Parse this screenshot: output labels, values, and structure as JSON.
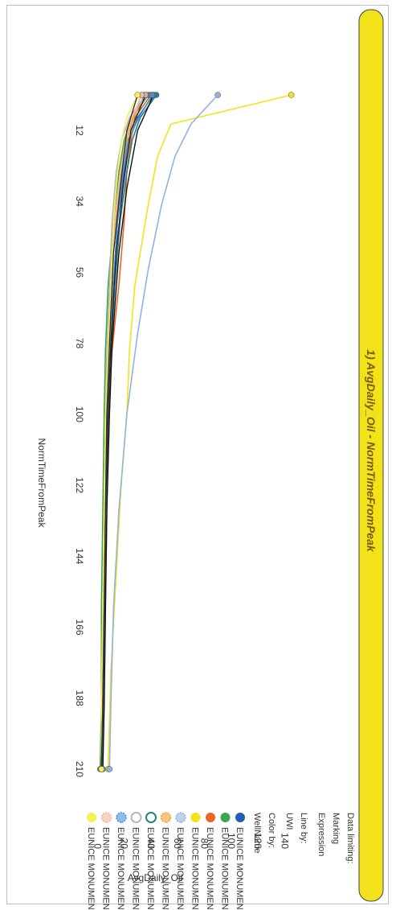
{
  "chart_data": {
    "type": "line",
    "title": "1) AvgDaily_Oil - NormTimeFromPeak",
    "xlabel": "NormTimeFromPeak",
    "ylabel": "AvgDaily_Oil",
    "x_ticks": [
      12,
      34,
      56,
      78,
      100,
      122,
      144,
      166,
      188,
      210
    ],
    "y_ticks": [
      0,
      20,
      40,
      60,
      80,
      100,
      120,
      140
    ],
    "xlim": [
      1,
      223
    ],
    "ylim": [
      -2,
      150
    ],
    "grid": false,
    "legend_position": "right",
    "series": [
      {
        "name": "EUNICE MONUMENT..",
        "color": "#1f5fb4",
        "marker": "circle",
        "x": [
          1,
          8,
          15,
          25,
          40,
          60,
          80,
          100,
          130,
          160,
          190,
          210
        ],
        "y": [
          42,
          30,
          24,
          20,
          15,
          12,
          9,
          7,
          6,
          5,
          4,
          3
        ]
      },
      {
        "name": "EUNICE MONUMENT..",
        "color": "#3aa655",
        "marker": "circle",
        "x": [
          1,
          8,
          15,
          25,
          40,
          60,
          80,
          100,
          130,
          160,
          190,
          210
        ],
        "y": [
          38,
          26,
          20,
          16,
          12,
          8,
          6,
          5,
          4,
          3,
          3,
          2
        ]
      },
      {
        "name": "EUNICE MONUMENT..",
        "color": "#e8652b",
        "marker": "circle",
        "x": [
          1,
          8,
          15,
          25,
          40,
          60,
          80,
          100,
          130,
          160,
          190,
          210
        ],
        "y": [
          40,
          28,
          25,
          22,
          20,
          16,
          11,
          8,
          6,
          5,
          4,
          3
        ]
      },
      {
        "name": "EUNICE MONUMENT..",
        "color": "#f5e21b",
        "marker": "circle",
        "x": [
          1,
          10,
          20,
          35,
          45,
          60,
          80,
          100,
          120,
          150,
          180,
          210
        ],
        "y": [
          145,
          55,
          45,
          38,
          34,
          28,
          24,
          22,
          18,
          14,
          10,
          8
        ]
      },
      {
        "name": "EUNICE MONUMENT..",
        "color": "#8fb3de",
        "marker": "sun",
        "x": [
          1,
          10,
          20,
          35,
          55,
          75,
          100,
          130,
          160,
          190,
          210
        ],
        "y": [
          90,
          70,
          58,
          48,
          38,
          30,
          22,
          16,
          12,
          10,
          9
        ]
      },
      {
        "name": "EUNICE MONUMENT..",
        "color": "#f0a030",
        "marker": "sun",
        "x": [
          1,
          8,
          15,
          25,
          40,
          60,
          80,
          100,
          130,
          160,
          190,
          210
        ],
        "y": [
          35,
          27,
          22,
          18,
          14,
          10,
          8,
          6,
          5,
          4,
          3,
          3
        ]
      },
      {
        "name": "EUNICE MONUMENT..",
        "color": "#2a7f7f",
        "marker": "ring",
        "x": [
          1,
          8,
          15,
          25,
          40,
          60,
          80,
          100,
          130,
          160,
          190,
          210
        ],
        "y": [
          44,
          32,
          26,
          22,
          17,
          13,
          10,
          8,
          6,
          5,
          4,
          3
        ]
      },
      {
        "name": "EUNICE MONUMENT..",
        "color": "#b5b5b5",
        "marker": "ring",
        "x": [
          1,
          8,
          15,
          25,
          40,
          60,
          80,
          100,
          130,
          160,
          190,
          210
        ],
        "y": [
          36,
          24,
          18,
          14,
          11,
          9,
          7,
          6,
          5,
          4,
          4,
          3
        ]
      },
      {
        "name": "EUNICE MONUMENT..",
        "color": "#4a90d9",
        "marker": "sun",
        "x": [
          1,
          8,
          15,
          25,
          40,
          60,
          80,
          100,
          130,
          160,
          190,
          210
        ],
        "y": [
          41,
          31,
          23,
          19,
          15,
          12,
          10,
          8,
          7,
          6,
          5,
          4
        ]
      },
      {
        "name": "EUNICE MONUMENT..",
        "color": "#f2b8a0",
        "marker": "sun",
        "x": [
          1,
          8,
          15,
          25,
          40,
          60,
          80,
          100,
          130,
          160,
          190,
          210
        ],
        "y": [
          33,
          26,
          21,
          17,
          13,
          11,
          9,
          7,
          6,
          5,
          4,
          3
        ]
      },
      {
        "name": "EUNICE MONUMENT..",
        "color": "#f7ef55",
        "marker": "circle",
        "x": [
          1,
          8,
          15,
          25,
          40,
          60,
          80,
          100,
          130,
          160,
          190,
          210
        ],
        "y": [
          30,
          22,
          18,
          15,
          12,
          10,
          8,
          6,
          5,
          4,
          3,
          3
        ]
      }
    ],
    "background_series_colors": [
      "#111111",
      "#222222",
      "#333333"
    ]
  },
  "legend": {
    "data_limiting_label": "Data limiting:",
    "marking_label": "Marking",
    "expression_label": "Expression",
    "line_by_label": "Line by:",
    "line_by_value": "UWI",
    "color_by_label": "Color by:",
    "color_by_value": "WellName"
  },
  "colors": {
    "title_banner": "#f2e21c",
    "title_text": "#7a5a00",
    "frame_border": "#bdbdbd"
  }
}
